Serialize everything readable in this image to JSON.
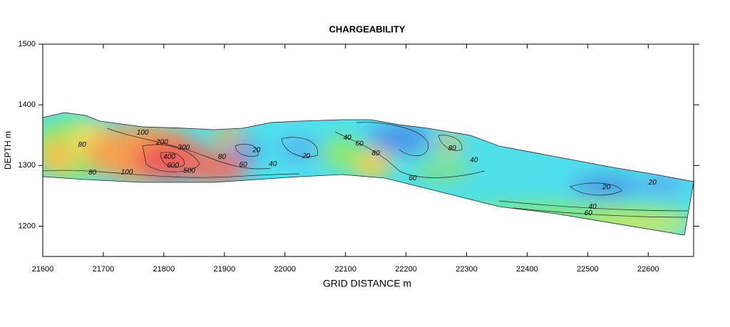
{
  "chart_data": {
    "type": "contour",
    "title": "CHARGEABILITY",
    "x_label": "GRID DISTANCE m",
    "y_label": "DEPTH m",
    "xlim": [
      21600,
      22675
    ],
    "ylim": [
      1150,
      1500
    ],
    "xticks": [
      21600,
      21700,
      21800,
      21900,
      22000,
      22100,
      22200,
      22300,
      22400,
      22500,
      22600
    ],
    "yticks": [
      1200,
      1300,
      1400,
      1500
    ],
    "contour_labels": [
      {
        "label": 100,
        "x": 21765,
        "y": 1354
      },
      {
        "label": 80,
        "x": 21665,
        "y": 1334
      },
      {
        "label": 200,
        "x": 21797,
        "y": 1338
      },
      {
        "label": 300,
        "x": 21833,
        "y": 1329
      },
      {
        "label": 400,
        "x": 21809,
        "y": 1314
      },
      {
        "label": 600,
        "x": 21815,
        "y": 1300
      },
      {
        "label": 500,
        "x": 21842,
        "y": 1291
      },
      {
        "label": 80,
        "x": 21682,
        "y": 1288
      },
      {
        "label": 100,
        "x": 21739,
        "y": 1289
      },
      {
        "label": 80,
        "x": 21896,
        "y": 1314
      },
      {
        "label": 60,
        "x": 21931,
        "y": 1301
      },
      {
        "label": 20,
        "x": 21953,
        "y": 1325
      },
      {
        "label": 40,
        "x": 21980,
        "y": 1302
      },
      {
        "label": 20,
        "x": 22035,
        "y": 1315
      },
      {
        "label": 40,
        "x": 22103,
        "y": 1346
      },
      {
        "label": 60,
        "x": 22123,
        "y": 1336
      },
      {
        "label": 80,
        "x": 22150,
        "y": 1320
      },
      {
        "label": 60,
        "x": 22211,
        "y": 1279
      },
      {
        "label": 80,
        "x": 22276,
        "y": 1328
      },
      {
        "label": 40,
        "x": 22312,
        "y": 1309
      },
      {
        "label": 20,
        "x": 22531,
        "y": 1264
      },
      {
        "label": 20,
        "x": 22607,
        "y": 1272
      },
      {
        "label": 40,
        "x": 22508,
        "y": 1232
      },
      {
        "label": 60,
        "x": 22501,
        "y": 1221
      }
    ]
  }
}
